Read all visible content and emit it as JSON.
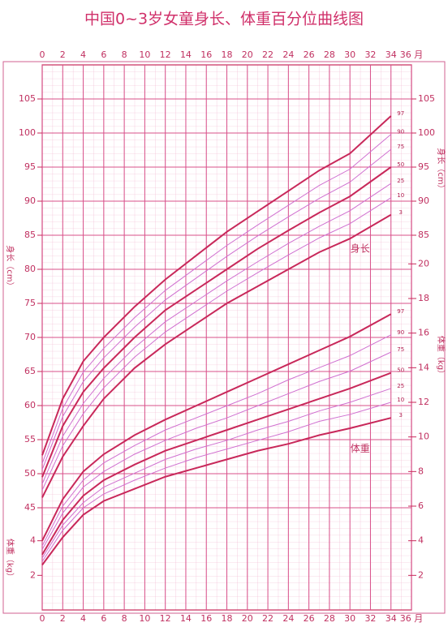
{
  "chart_data": {
    "type": "line",
    "title": "中国0~3岁女童身长、体重百分位曲线图",
    "x": [
      0,
      2,
      4,
      6,
      9,
      12,
      15,
      18,
      21,
      24,
      27,
      30,
      34
    ],
    "xlim": [
      0,
      36
    ],
    "xticks": [
      0,
      2,
      4,
      6,
      8,
      10,
      12,
      14,
      16,
      18,
      20,
      22,
      24,
      26,
      28,
      30,
      32,
      34,
      {
        "value": 36,
        "label": "36 月"
      }
    ],
    "ylabel": "身长（cm）",
    "ylim": [
      30,
      110
    ],
    "yticks": [
      45,
      50,
      55,
      60,
      65,
      70,
      75,
      80,
      85,
      90,
      95,
      100,
      105
    ],
    "yticks_right": [
      85,
      90,
      95,
      100,
      105
    ],
    "y2label": "体重（kg）",
    "y2lim": [
      0,
      31.5
    ],
    "y2ticks": [
      2,
      4,
      6,
      8,
      10,
      12,
      14,
      16,
      18,
      20
    ],
    "y2ticks_left": [
      2,
      4
    ],
    "grid": true,
    "annotations": [
      {
        "text": "身长",
        "x": 31,
        "y": 83,
        "axis": "y"
      },
      {
        "text": "体重",
        "x": 31,
        "y": 9.3,
        "axis": "y2"
      }
    ],
    "series": [
      {
        "name": "97",
        "color": "#c8285a",
        "values": [
          52.7,
          61,
          66.5,
          70,
          74.5,
          78.5,
          82,
          85.5,
          88.5,
          91.5,
          94.5,
          97,
          102.5
        ]
      },
      {
        "name": "90",
        "color": "#d070d0",
        "values": [
          51.5,
          59.6,
          64.9,
          68.4,
          72.9,
          76.9,
          80.2,
          83.5,
          86.5,
          89.4,
          92.3,
          94.7,
          99.8
        ]
      },
      {
        "name": "75",
        "color": "#d070d0",
        "values": [
          50.6,
          58.4,
          63.5,
          67,
          71.5,
          75.5,
          78.7,
          81.9,
          84.9,
          87.7,
          90.4,
          92.8,
          97.6
        ]
      },
      {
        "name": "50",
        "color": "#c8285a",
        "values": [
          49.5,
          57,
          62,
          65.5,
          70,
          74,
          77,
          80,
          83,
          85.7,
          88.3,
          90.7,
          95
        ]
      },
      {
        "name": "25",
        "color": "#d070d0",
        "values": [
          48.5,
          55.5,
          60.3,
          64,
          68.5,
          72.3,
          75.3,
          78.3,
          81.1,
          83.8,
          86.3,
          88.6,
          92.6
        ]
      },
      {
        "name": "10",
        "color": "#d070d0",
        "values": [
          47.6,
          54.1,
          58.8,
          62.6,
          67.1,
          70.8,
          73.8,
          76.8,
          79.5,
          82.1,
          84.6,
          86.7,
          90.5
        ]
      },
      {
        "name": "3",
        "color": "#c8285a",
        "values": [
          46.5,
          52.5,
          57,
          61,
          65.5,
          69,
          72,
          75,
          77.5,
          80,
          82.5,
          84.5,
          88
        ]
      },
      {
        "name": "97",
        "color": "#c8285a",
        "axis": "y2",
        "values": [
          4.0,
          6.4,
          8.0,
          9.0,
          10.1,
          11.0,
          11.8,
          12.6,
          13.4,
          14.2,
          15.0,
          15.8,
          17.1
        ]
      },
      {
        "name": "90",
        "color": "#d070d0",
        "axis": "y2",
        "values": [
          3.7,
          6.0,
          7.5,
          8.5,
          9.5,
          10.4,
          11.1,
          11.8,
          12.5,
          13.3,
          14.0,
          14.7,
          15.9
        ]
      },
      {
        "name": "75",
        "color": "#d070d0",
        "axis": "y2",
        "values": [
          3.5,
          5.6,
          7.1,
          8.0,
          9.0,
          9.8,
          10.5,
          11.1,
          11.8,
          12.5,
          13.2,
          13.8,
          14.9
        ]
      },
      {
        "name": "50",
        "color": "#c8285a",
        "axis": "y2",
        "values": [
          3.2,
          5.2,
          6.6,
          7.5,
          8.4,
          9.2,
          9.8,
          10.4,
          11.0,
          11.6,
          12.2,
          12.8,
          13.7
        ]
      },
      {
        "name": "25",
        "color": "#d070d0",
        "axis": "y2",
        "values": [
          3.0,
          4.9,
          6.2,
          7.1,
          7.9,
          8.7,
          9.3,
          9.8,
          10.4,
          10.9,
          11.5,
          12.0,
          12.8
        ]
      },
      {
        "name": "10",
        "color": "#d070d0",
        "axis": "y2",
        "values": [
          2.8,
          4.6,
          5.9,
          6.7,
          7.5,
          8.2,
          8.8,
          9.3,
          9.8,
          10.3,
          10.9,
          11.3,
          12.0
        ]
      },
      {
        "name": "3",
        "color": "#c8285a",
        "axis": "y2",
        "values": [
          2.6,
          4.2,
          5.5,
          6.3,
          7.0,
          7.7,
          8.2,
          8.7,
          9.2,
          9.6,
          10.1,
          10.5,
          11.1
        ]
      }
    ]
  }
}
